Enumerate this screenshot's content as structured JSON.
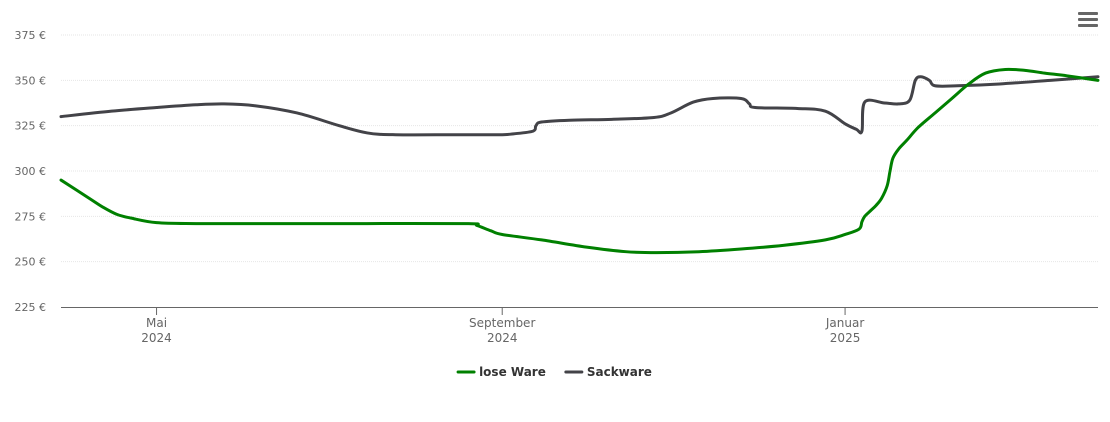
{
  "chart_data": {
    "type": "line",
    "title": "",
    "xlabel": "",
    "ylabel": "",
    "ylim": [
      225,
      375
    ],
    "y_ticks": [
      "225 €",
      "250 €",
      "275 €",
      "300 €",
      "325 €",
      "350 €",
      "375 €"
    ],
    "x_ticks": [
      {
        "month": "Mai",
        "year": "2024",
        "date": "2024-05-01"
      },
      {
        "month": "September",
        "year": "2024",
        "date": "2024-09-01"
      },
      {
        "month": "Januar",
        "year": "2025",
        "date": "2025-01-01"
      }
    ],
    "xlim": [
      "2024-03-28",
      "2025-04-01"
    ],
    "grid": true,
    "legend_position": "bottom-center",
    "series": [
      {
        "name": "lose Ware",
        "color": "#008000",
        "points": [
          [
            "2024-03-28",
            295
          ],
          [
            "2024-04-07",
            285
          ],
          [
            "2024-04-12",
            280
          ],
          [
            "2024-04-17",
            276
          ],
          [
            "2024-04-22",
            274
          ],
          [
            "2024-05-01",
            271.5
          ],
          [
            "2024-05-15",
            271
          ],
          [
            "2024-06-15",
            271
          ],
          [
            "2024-07-15",
            271
          ],
          [
            "2024-08-20",
            271
          ],
          [
            "2024-08-23",
            270
          ],
          [
            "2024-08-28",
            267
          ],
          [
            "2024-09-01",
            265
          ],
          [
            "2024-09-15",
            262
          ],
          [
            "2024-10-01",
            258
          ],
          [
            "2024-10-15",
            255.5
          ],
          [
            "2024-10-26",
            255
          ],
          [
            "2024-11-10",
            255.5
          ],
          [
            "2024-11-25",
            257
          ],
          [
            "2024-12-10",
            259
          ],
          [
            "2024-12-25",
            262
          ],
          [
            "2025-01-01",
            265
          ],
          [
            "2025-01-06",
            268
          ],
          [
            "2025-01-07",
            272
          ],
          [
            "2025-01-08",
            275
          ],
          [
            "2025-01-10",
            278
          ],
          [
            "2025-01-12",
            281
          ],
          [
            "2025-01-14",
            285
          ],
          [
            "2025-01-16",
            292
          ],
          [
            "2025-01-17",
            300
          ],
          [
            "2025-01-18",
            307
          ],
          [
            "2025-01-20",
            312
          ],
          [
            "2025-01-23",
            317
          ],
          [
            "2025-01-27",
            324
          ],
          [
            "2025-02-02",
            332
          ],
          [
            "2025-02-08",
            340
          ],
          [
            "2025-02-14",
            348
          ],
          [
            "2025-02-20",
            354
          ],
          [
            "2025-02-27",
            356
          ],
          [
            "2025-03-06",
            355.5
          ],
          [
            "2025-03-13",
            354
          ],
          [
            "2025-03-21",
            352.5
          ],
          [
            "2025-04-01",
            350
          ]
        ]
      },
      {
        "name": "Sackware",
        "color": "#434348",
        "points": [
          [
            "2024-03-28",
            330
          ],
          [
            "2024-04-15",
            333
          ],
          [
            "2024-05-01",
            335
          ],
          [
            "2024-05-15",
            336.5
          ],
          [
            "2024-05-25",
            337
          ],
          [
            "2024-06-05",
            336
          ],
          [
            "2024-06-20",
            332
          ],
          [
            "2024-07-05",
            325
          ],
          [
            "2024-07-15",
            321
          ],
          [
            "2024-07-25",
            320
          ],
          [
            "2024-08-15",
            320
          ],
          [
            "2024-08-31",
            320
          ],
          [
            "2024-09-05",
            320.5
          ],
          [
            "2024-09-12",
            322
          ],
          [
            "2024-09-13",
            325
          ],
          [
            "2024-09-15",
            327
          ],
          [
            "2024-09-25",
            328
          ],
          [
            "2024-10-10",
            328.5
          ],
          [
            "2024-10-25",
            329.5
          ],
          [
            "2024-10-31",
            332
          ],
          [
            "2024-11-08",
            338
          ],
          [
            "2024-11-15",
            340
          ],
          [
            "2024-11-25",
            340
          ],
          [
            "2024-11-28",
            337
          ],
          [
            "2024-11-30",
            335
          ],
          [
            "2024-12-15",
            334.5
          ],
          [
            "2024-12-25",
            333
          ],
          [
            "2025-01-01",
            326
          ],
          [
            "2025-01-05",
            323
          ],
          [
            "2025-01-07",
            322
          ],
          [
            "2025-01-08",
            338
          ],
          [
            "2025-01-15",
            337.5
          ],
          [
            "2025-01-20",
            337
          ],
          [
            "2025-01-24",
            339
          ],
          [
            "2025-01-26",
            350
          ],
          [
            "2025-01-28",
            352
          ],
          [
            "2025-01-31",
            350
          ],
          [
            "2025-02-02",
            347
          ],
          [
            "2025-02-10",
            347
          ],
          [
            "2025-02-25",
            348
          ],
          [
            "2025-03-15",
            350
          ],
          [
            "2025-04-01",
            352
          ]
        ]
      }
    ]
  },
  "menu": {
    "icon": "hamburger-menu-icon"
  }
}
